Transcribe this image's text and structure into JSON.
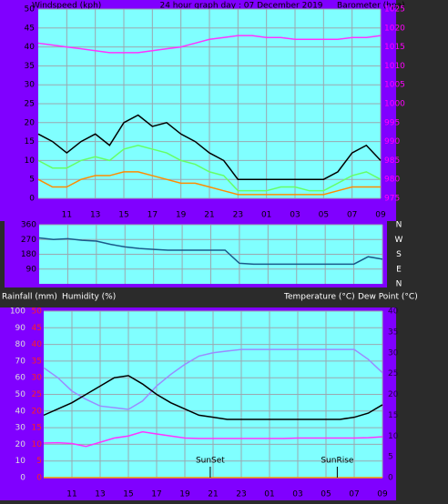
{
  "chart_data": [
    {
      "type": "line",
      "title": "24 hour graph day : 07 December 2019",
      "y_label": "Windspeed (kph)",
      "y2_label": "Barometer (hpa)",
      "x": [
        0,
        1,
        2,
        3,
        4,
        5,
        6,
        7,
        8,
        9,
        10,
        11,
        12,
        13,
        14,
        15,
        16,
        17,
        18,
        19,
        20,
        21,
        22,
        23,
        24
      ],
      "xlim": [
        0,
        24
      ],
      "xticks": [
        {
          "value": 2,
          "label": "11"
        },
        {
          "value": 4,
          "label": "13"
        },
        {
          "value": 6,
          "label": "15"
        },
        {
          "value": 8,
          "label": "17"
        },
        {
          "value": 10,
          "label": "19"
        },
        {
          "value": 12,
          "label": "21"
        },
        {
          "value": 14,
          "label": "23"
        },
        {
          "value": 16,
          "label": "01"
        },
        {
          "value": 18,
          "label": "03"
        },
        {
          "value": 20,
          "label": "05"
        },
        {
          "value": 22,
          "label": "07"
        },
        {
          "value": 24,
          "label": "09"
        }
      ],
      "ylim": [
        0,
        50
      ],
      "yticks": [
        0,
        5,
        10,
        15,
        20,
        25,
        30,
        35,
        40,
        45,
        50
      ],
      "ytick_color": "#000000",
      "y2lim": [
        975,
        1025
      ],
      "y2ticks": [
        975,
        980,
        985,
        990,
        995,
        1000,
        1005,
        1010,
        1015,
        1020,
        1025
      ],
      "y2tick_color": "#ff00ff",
      "grid": true,
      "series": [
        {
          "color": "#000000",
          "values": [
            17,
            15,
            12,
            15,
            17,
            14,
            20,
            22,
            19,
            20,
            17,
            15,
            12,
            10,
            5,
            5,
            5,
            5,
            5,
            5,
            5,
            7,
            12,
            14,
            10
          ]
        },
        {
          "color": "#66ff66",
          "values": [
            10,
            8,
            8,
            10,
            11,
            10,
            13,
            14,
            13,
            12,
            10,
            9,
            7,
            6,
            2,
            2,
            2,
            3,
            3,
            2,
            2,
            4,
            6,
            7,
            5
          ]
        },
        {
          "color": "#ff8c00",
          "values": [
            5,
            3,
            3,
            5,
            6,
            6,
            7,
            7,
            6,
            5,
            4,
            4,
            3,
            2,
            1,
            1,
            1,
            1,
            1,
            1,
            1,
            2,
            3,
            3,
            3
          ]
        },
        {
          "color": "#ff33ff",
          "axis": "y2",
          "values": [
            1016,
            1015.5,
            1015,
            1014.5,
            1014,
            1013.5,
            1013.5,
            1013.5,
            1014,
            1014.5,
            1015,
            1016,
            1017,
            1017.5,
            1018,
            1018,
            1017.5,
            1017.5,
            1017,
            1017,
            1017,
            1017,
            1017.5,
            1017.5,
            1018
          ]
        }
      ]
    },
    {
      "type": "line",
      "x": [
        0,
        1,
        2,
        3,
        4,
        5,
        6,
        7,
        8,
        9,
        10,
        11,
        12,
        13,
        14,
        15,
        16,
        17,
        18,
        19,
        20,
        21,
        22,
        23,
        24
      ],
      "xlim": [
        0,
        24
      ],
      "ylim": [
        0,
        360
      ],
      "yticks": [
        90,
        180,
        270,
        360
      ],
      "ytick_color": "#000000",
      "y2lim": [
        0,
        360
      ],
      "y2ticks": [
        {
          "value": 360,
          "label": "N"
        },
        {
          "value": 270,
          "label": "W"
        },
        {
          "value": 180,
          "label": "S"
        },
        {
          "value": 90,
          "label": "E"
        },
        {
          "value": 0,
          "label": "N"
        }
      ],
      "y2tick_color": "#ffffff",
      "grid": true,
      "series": [
        {
          "color": "#1a5a8a",
          "values": [
            280,
            270,
            275,
            265,
            260,
            240,
            225,
            215,
            210,
            205,
            205,
            205,
            205,
            205,
            125,
            120,
            120,
            120,
            120,
            120,
            120,
            120,
            120,
            165,
            150
          ]
        }
      ]
    },
    {
      "type": "line",
      "y_label": "Humidity (%)",
      "y3_label": "Rainfall (mm)",
      "y2_label": "Temperature (°C)",
      "y2b_label": "Dew Point (°C)",
      "x": [
        0,
        1,
        2,
        3,
        4,
        5,
        6,
        7,
        8,
        9,
        10,
        11,
        12,
        13,
        14,
        15,
        16,
        17,
        18,
        19,
        20,
        21,
        22,
        23,
        24
      ],
      "xlim": [
        0,
        24
      ],
      "xticks": [
        {
          "value": 2,
          "label": "11"
        },
        {
          "value": 4,
          "label": "13"
        },
        {
          "value": 6,
          "label": "15"
        },
        {
          "value": 8,
          "label": "17"
        },
        {
          "value": 10,
          "label": "19"
        },
        {
          "value": 12,
          "label": "21"
        },
        {
          "value": 14,
          "label": "23"
        },
        {
          "value": 16,
          "label": "01"
        },
        {
          "value": 18,
          "label": "03"
        },
        {
          "value": 20,
          "label": "05"
        },
        {
          "value": 22,
          "label": "07"
        },
        {
          "value": 24,
          "label": "09"
        }
      ],
      "ylim": [
        0,
        100
      ],
      "yticks": [
        0,
        10,
        20,
        30,
        40,
        50,
        60,
        70,
        80,
        90,
        100
      ],
      "ytick_color": "#dddddd",
      "y3lim": [
        0,
        50
      ],
      "y3ticks": [
        0,
        5,
        10,
        15,
        20,
        25,
        30,
        35,
        40,
        45,
        50
      ],
      "y3tick_color": "#ff2020",
      "y2lim": [
        0,
        40
      ],
      "y2ticks": [
        0,
        5,
        10,
        15,
        20,
        25,
        30,
        35,
        40
      ],
      "y2tick_color": "#200040",
      "grid": true,
      "series": [
        {
          "color": "#9a8cff",
          "values": [
            66,
            60,
            52,
            47,
            43,
            42,
            41,
            46,
            55,
            62,
            68,
            73,
            75,
            76,
            77,
            77,
            77,
            77,
            77,
            77,
            77,
            77,
            77,
            71,
            63
          ]
        },
        {
          "color": "#000000",
          "axis": "y2",
          "values": [
            15,
            16.5,
            18,
            20,
            22,
            24,
            24.5,
            22.5,
            20,
            18,
            16.5,
            15,
            14.5,
            14,
            14,
            14,
            14,
            14,
            14,
            14,
            14,
            14,
            14.5,
            15.5,
            17.5
          ]
        },
        {
          "color": "#ff33ff",
          "axis": "y2",
          "values": [
            8.3,
            8.4,
            8.2,
            7.5,
            8.5,
            9.5,
            10,
            11,
            10.5,
            10,
            9.5,
            9.4,
            9.4,
            9.4,
            9.4,
            9.4,
            9.4,
            9.4,
            9.5,
            9.5,
            9.5,
            9.5,
            9.5,
            9.6,
            9.8
          ]
        },
        {
          "color": "#ff9900",
          "axis": "y3",
          "values": [
            0,
            0,
            0,
            0,
            0,
            0,
            0,
            0,
            0,
            0,
            0,
            0,
            0,
            0,
            0,
            0,
            0,
            0,
            0,
            0,
            0,
            0,
            0,
            0,
            0
          ]
        }
      ],
      "annotations": [
        {
          "text": "SunSet",
          "x": 11.8
        },
        {
          "text": "SunRise",
          "x": 20.8
        }
      ]
    }
  ]
}
